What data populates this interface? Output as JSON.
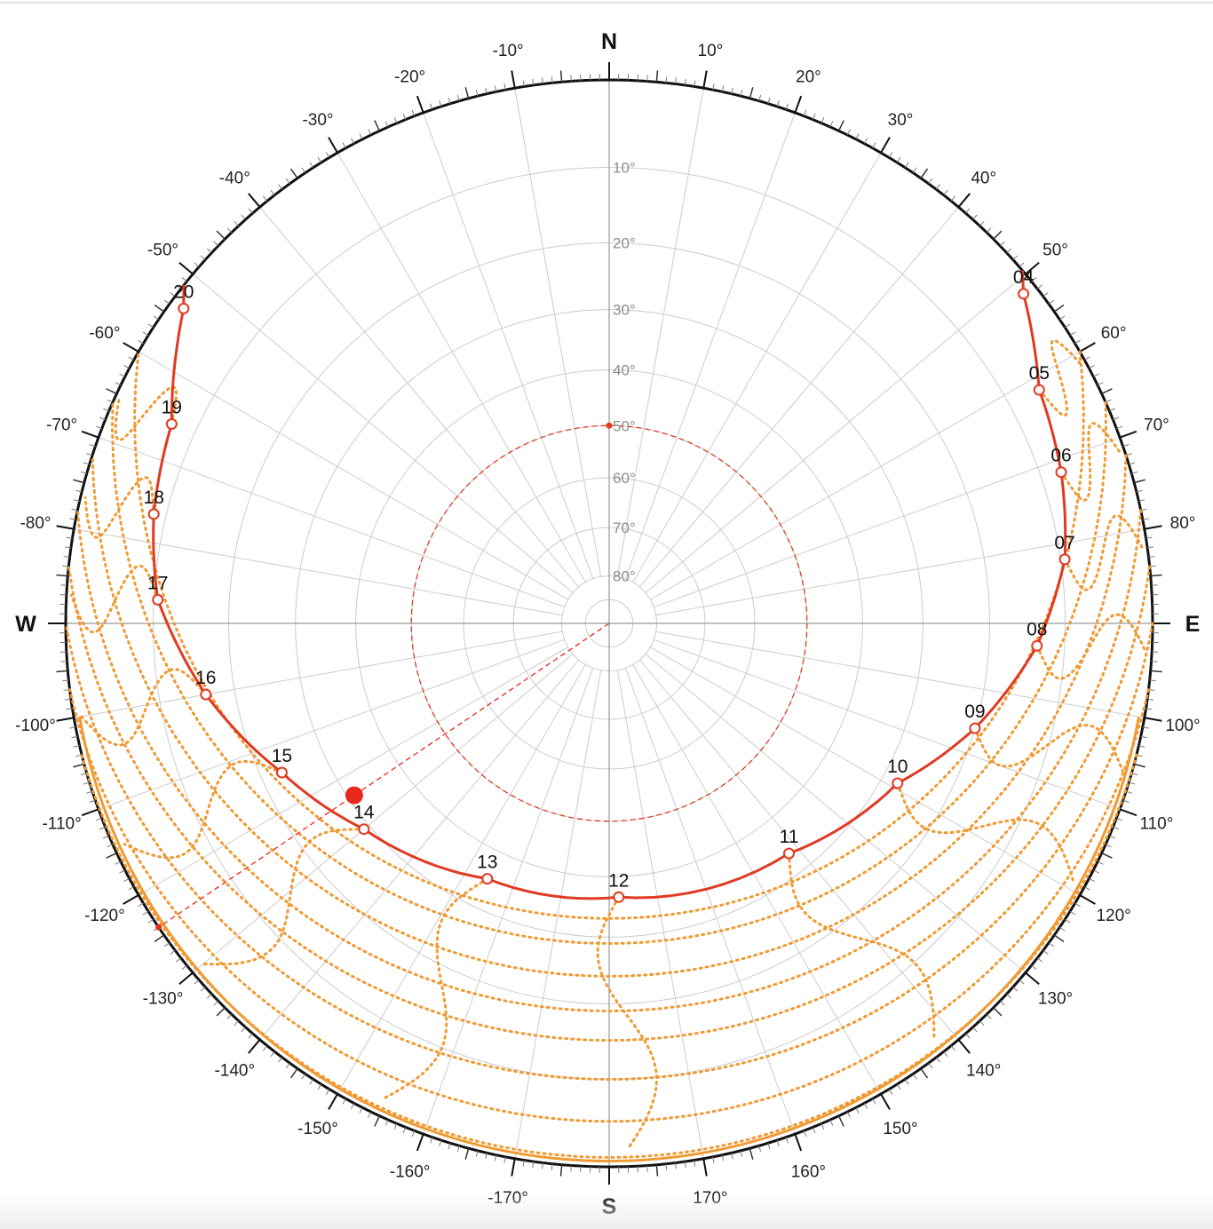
{
  "chart_data": {
    "type": "polar-sunpath",
    "projection": "stereographic",
    "title": "",
    "cardinals": {
      "north": "N",
      "east": "E",
      "south": "S",
      "west": "W"
    },
    "azimuth_labels": [
      "10°",
      "20°",
      "30°",
      "40°",
      "50°",
      "60°",
      "70°",
      "80°",
      "100°",
      "110°",
      "120°",
      "130°",
      "140°",
      "150°",
      "160°",
      "170°",
      "-170°",
      "-160°",
      "-150°",
      "-140°",
      "-130°",
      "-120°",
      "-110°",
      "-100°",
      "-80°",
      "-70°",
      "-60°",
      "-50°",
      "-40°",
      "-30°",
      "-20°",
      "-10°"
    ],
    "altitude_labels": [
      "10°",
      "20°",
      "30°",
      "40°",
      "50°",
      "60°",
      "70°",
      "80°"
    ],
    "today_path": {
      "color": "#e03a22",
      "points": [
        {
          "hour": "04",
          "azimuth": 51.5,
          "altitude": 1.5
        },
        {
          "hour": "05",
          "azimuth": 61.5,
          "altitude": 6.0
        },
        {
          "hour": "06",
          "azimuth": 71.5,
          "altitude": 7.5
        },
        {
          "hour": "07",
          "azimuth": 82.0,
          "altitude": 9.5
        },
        {
          "hour": "08",
          "azimuth": 93.0,
          "altitude": 13.5
        },
        {
          "hour": "09",
          "azimuth": 106.0,
          "altitude": 20.0
        },
        {
          "hour": "10",
          "azimuth": 119.0,
          "altitude": 27.5
        },
        {
          "hour": "11",
          "azimuth": 142.0,
          "altitude": 33.5
        },
        {
          "hour": "12",
          "azimuth": 178.0,
          "altitude": 36.5
        },
        {
          "hour": "13",
          "azimuth": -154.5,
          "altitude": 35.0
        },
        {
          "hour": "14",
          "azimuth": -130.0,
          "altitude": 29.0
        },
        {
          "hour": "15",
          "azimuth": -114.5,
          "altitude": 23.0
        },
        {
          "hour": "16",
          "azimuth": -100.0,
          "altitude": 16.0
        },
        {
          "hour": "17",
          "azimuth": -87.0,
          "altitude": 10.5
        },
        {
          "hour": "18",
          "azimuth": -76.5,
          "altitude": 8.5
        },
        {
          "hour": "19",
          "azimuth": -65.5,
          "altitude": 7.0
        },
        {
          "hour": "20",
          "azimuth": -53.5,
          "altitude": 1.5
        }
      ]
    },
    "current_sun": {
      "azimuth": -124.0,
      "altitude": 31.0,
      "color": "#e8281c"
    },
    "reference_altitude_circle": {
      "altitude": 50,
      "color": "#e03a22"
    },
    "seasonal_paths": {
      "color": "#ef9a33",
      "style": "dotted",
      "series": [
        {
          "peak_altitude": 33,
          "rise_azimuth": 60,
          "set_azimuth": -60
        },
        {
          "peak_altitude": 29,
          "rise_azimuth": 66,
          "set_azimuth": -66
        },
        {
          "peak_altitude": 24,
          "rise_azimuth": 72,
          "set_azimuth": -72
        },
        {
          "peak_altitude": 19,
          "rise_azimuth": 78,
          "set_azimuth": -78
        },
        {
          "peak_altitude": 15,
          "rise_azimuth": 84,
          "set_azimuth": -84
        },
        {
          "peak_altitude": 10,
          "rise_azimuth": 90,
          "set_azimuth": -90
        },
        {
          "peak_altitude": 5,
          "rise_azimuth": 97,
          "set_azimuth": -97
        },
        {
          "peak_altitude": 1,
          "rise_azimuth": 104,
          "set_azimuth": -104
        }
      ]
    },
    "colors": {
      "grid": "#cccccc",
      "axis": "#999999",
      "rim": "#111111",
      "today": "#e03a22",
      "seasonal": "#ef9a33"
    }
  }
}
